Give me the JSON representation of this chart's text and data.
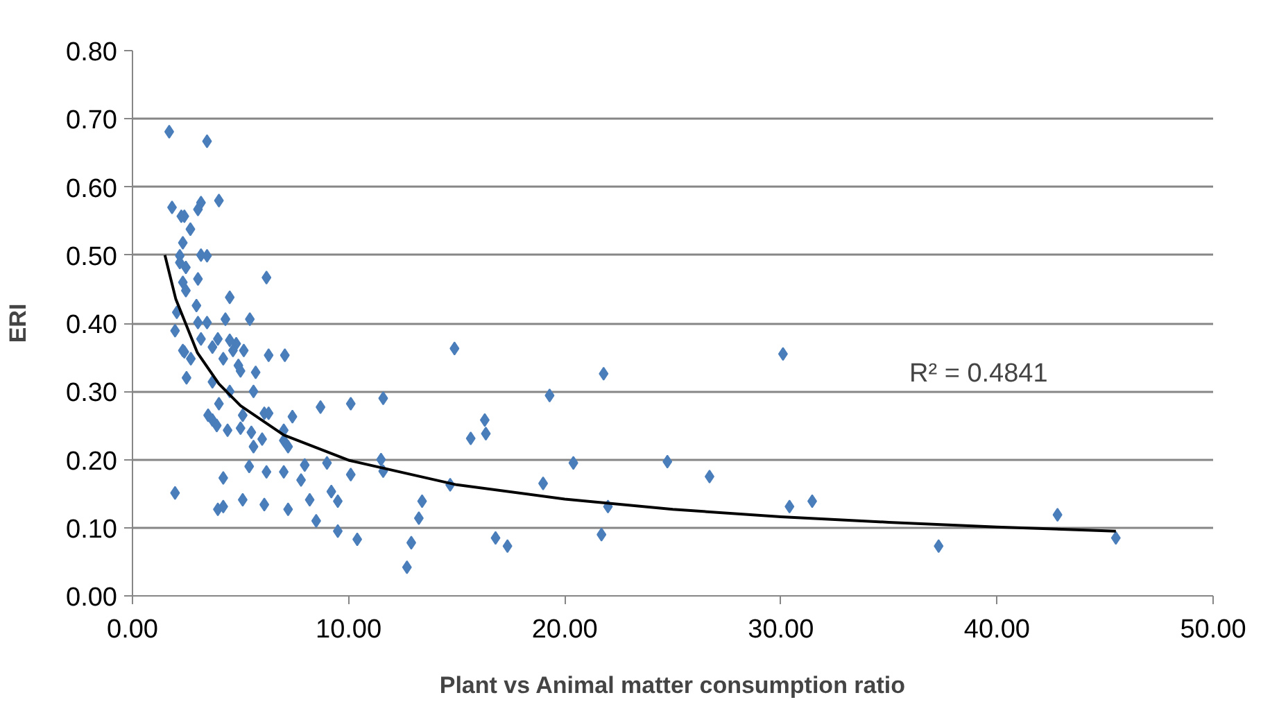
{
  "chart_data": {
    "type": "scatter",
    "xlabel": "Plant vs Animal matter consumption ratio",
    "ylabel": "ERI",
    "xlim": [
      0,
      50
    ],
    "ylim": [
      0,
      0.8
    ],
    "xticks": [
      {
        "value": 0,
        "label": "0.00"
      },
      {
        "value": 10,
        "label": "10.00"
      },
      {
        "value": 20,
        "label": "20.00"
      },
      {
        "value": 30,
        "label": "30.00"
      },
      {
        "value": 40,
        "label": "40.00"
      },
      {
        "value": 50,
        "label": "50.00"
      }
    ],
    "yticks": [
      {
        "value": 0,
        "label": "0.00"
      },
      {
        "value": 0.1,
        "label": "0.10"
      },
      {
        "value": 0.2,
        "label": "0.20"
      },
      {
        "value": 0.3,
        "label": "0.30"
      },
      {
        "value": 0.4,
        "label": "0.40"
      },
      {
        "value": 0.5,
        "label": "0.50"
      },
      {
        "value": 0.6,
        "label": "0.60"
      },
      {
        "value": 0.7,
        "label": "0.70"
      },
      {
        "value": 0.8,
        "label": "0.80"
      }
    ],
    "grid": "y",
    "series": [
      {
        "marker": "diamond",
        "color": "#4a7ebb",
        "x": [
          1.7,
          3.45,
          1.83,
          2.26,
          2.4,
          3.03,
          3.17,
          4.0,
          2.68,
          2.33,
          2.19,
          3.17,
          3.45,
          2.47,
          2.19,
          6.2,
          3.03,
          2.33,
          2.47,
          4.5,
          2.96,
          2.05,
          1.97,
          3.03,
          3.45,
          4.3,
          5.43,
          3.17,
          3.95,
          4.5,
          4.8,
          5.15,
          2.33,
          2.4,
          2.7,
          3.7,
          4.2,
          4.65,
          4.9,
          5.0,
          5.7,
          6.3,
          7.05,
          2.5,
          3.7,
          4.5,
          5.6,
          4.0,
          3.5,
          3.7,
          3.9,
          4.4,
          5.1,
          5.0,
          5.5,
          6.1,
          6.3,
          6.0,
          5.6,
          7.4,
          7.0,
          7.2,
          7.0,
          8.7,
          10.1,
          5.4,
          6.2,
          7.0,
          7.97,
          7.8,
          9.0,
          10.1,
          4.2,
          1.97,
          3.95,
          4.2,
          5.1,
          6.1,
          7.2,
          8.2,
          9.2,
          9.5,
          8.5,
          9.5,
          10.4,
          11.6,
          14.9,
          11.5,
          11.6,
          15.65,
          16.3,
          16.35,
          14.7,
          13.4,
          13.25,
          12.9,
          12.7,
          16.8,
          17.35,
          19.3,
          19.0,
          20.4,
          21.8,
          22.0,
          21.7,
          24.75,
          26.7,
          30.1,
          30.4,
          31.45,
          45.5,
          42.8,
          37.3
        ],
        "values": [
          0.681,
          0.667,
          0.57,
          0.557,
          0.557,
          0.567,
          0.577,
          0.58,
          0.538,
          0.518,
          0.499,
          0.5,
          0.499,
          0.482,
          0.489,
          0.467,
          0.465,
          0.46,
          0.448,
          0.438,
          0.426,
          0.416,
          0.389,
          0.401,
          0.401,
          0.406,
          0.406,
          0.377,
          0.377,
          0.375,
          0.37,
          0.36,
          0.36,
          0.358,
          0.348,
          0.365,
          0.348,
          0.36,
          0.338,
          0.33,
          0.328,
          0.353,
          0.353,
          0.32,
          0.314,
          0.3,
          0.3,
          0.282,
          0.265,
          0.258,
          0.25,
          0.243,
          0.265,
          0.246,
          0.24,
          0.268,
          0.268,
          0.23,
          0.219,
          0.263,
          0.243,
          0.219,
          0.228,
          0.277,
          0.282,
          0.19,
          0.182,
          0.182,
          0.192,
          0.17,
          0.195,
          0.178,
          0.173,
          0.151,
          0.127,
          0.131,
          0.141,
          0.134,
          0.127,
          0.141,
          0.153,
          0.139,
          0.11,
          0.095,
          0.083,
          0.29,
          0.363,
          0.2,
          0.183,
          0.231,
          0.258,
          0.238,
          0.163,
          0.139,
          0.114,
          0.078,
          0.042,
          0.085,
          0.073,
          0.294,
          0.165,
          0.195,
          0.326,
          0.131,
          0.09,
          0.197,
          0.175,
          0.355,
          0.131,
          0.139,
          0.085,
          0.119,
          0.073
        ]
      },
      {
        "type": "line",
        "color": "#000000",
        "line_style": "solid",
        "x": [
          1.5,
          2,
          3,
          4,
          5,
          7,
          10,
          15,
          20,
          25,
          30,
          35,
          40,
          45.5
        ],
        "values": [
          0.5,
          0.436,
          0.357,
          0.311,
          0.279,
          0.236,
          0.199,
          0.163,
          0.142,
          0.127,
          0.116,
          0.108,
          0.101,
          0.095
        ]
      }
    ],
    "annotations": [
      "R² = 0.4841"
    ]
  }
}
